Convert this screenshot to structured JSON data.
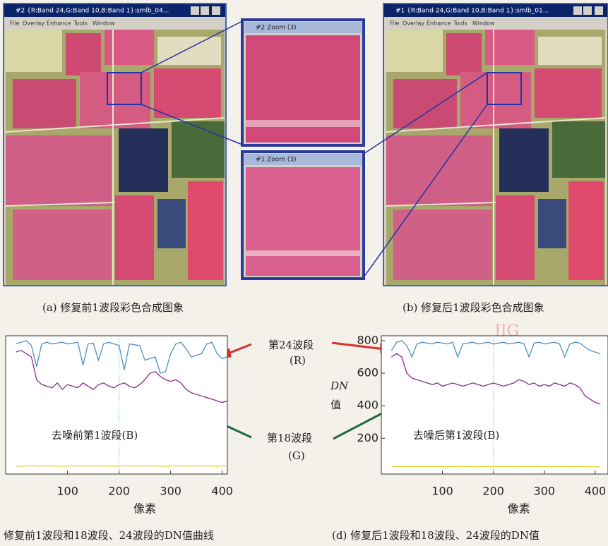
{
  "windows": {
    "left": {
      "title": "#2 {R:Band 24,G:Band 10,B:Band 1}:smlb_04...",
      "menu": [
        "File",
        "Overlay",
        "Enhance",
        "Tools",
        "Window"
      ]
    },
    "zoom_top": {
      "title": "#2 Zoom (3)"
    },
    "zoom_bottom": {
      "title": "#1 Zoom (3)"
    },
    "right": {
      "title": "#1 {R:Band 24,G:Band 10,B:Band 1}:smlb_01...",
      "menu": [
        "File",
        "Overlay",
        "Enhance",
        "Tools",
        "Window"
      ]
    }
  },
  "captions": {
    "a": "(a) 修复前1波段彩色合成图象",
    "b": "(b) 修复后1波段彩色合成图象",
    "c": "修复前1波段和18波段、24波段的DN值曲线",
    "d": "(d) 修复后1波段和18波段、24波段的DN值"
  },
  "annotations": {
    "band24": "第24波段",
    "band24_sub": "(R)",
    "band18": "第18波段",
    "band18_sub": "(G)",
    "dn": "DN",
    "dn_sub": "值",
    "watermark": "JIG"
  },
  "chart_data": [
    {
      "type": "line",
      "xlabel": "像素",
      "note": "去噪前第1波段(B)",
      "xlim": [
        -20,
        410
      ],
      "ylim": [
        -20,
        830
      ],
      "xticks": [
        100,
        200,
        300,
        400
      ],
      "yticks": [],
      "vline": 200,
      "x": [
        0,
        10,
        20,
        30,
        40,
        50,
        60,
        70,
        80,
        90,
        100,
        110,
        120,
        130,
        140,
        150,
        160,
        170,
        180,
        190,
        200,
        210,
        220,
        230,
        240,
        250,
        260,
        270,
        280,
        290,
        300,
        310,
        320,
        330,
        340,
        350,
        360,
        370,
        380,
        390,
        400,
        410
      ],
      "series": [
        {
          "color": "#4a8fc6",
          "values": [
            780,
            790,
            800,
            770,
            640,
            780,
            790,
            780,
            785,
            790,
            780,
            785,
            790,
            650,
            780,
            785,
            680,
            780,
            790,
            780,
            770,
            620,
            780,
            775,
            770,
            680,
            690,
            700,
            600,
            610,
            720,
            780,
            790,
            750,
            700,
            710,
            720,
            780,
            790,
            720,
            690,
            700
          ]
        },
        {
          "color": "#8a2a88",
          "values": [
            730,
            740,
            720,
            700,
            560,
            530,
            520,
            510,
            540,
            500,
            530,
            520,
            510,
            540,
            520,
            500,
            530,
            540,
            520,
            510,
            530,
            540,
            520,
            510,
            530,
            560,
            600,
            610,
            580,
            560,
            550,
            560,
            540,
            500,
            480,
            470,
            460,
            450,
            440,
            430,
            420,
            430
          ]
        },
        {
          "color": "#e6d420",
          "values": [
            30,
            28,
            30,
            32,
            29,
            30,
            31,
            29,
            30,
            28,
            30,
            31,
            30,
            29,
            30,
            31,
            30,
            29,
            30,
            28,
            30,
            31,
            30,
            29,
            30,
            31,
            30,
            29,
            30,
            28,
            30,
            31,
            30,
            29,
            30,
            31,
            30,
            29,
            30,
            28,
            30,
            30
          ]
        }
      ]
    },
    {
      "type": "line",
      "xlabel": "像素",
      "note": "去噪后第1波段(B)",
      "xlim": [
        -20,
        425
      ],
      "ylim": [
        -20,
        830
      ],
      "xticks": [
        100,
        200,
        300,
        400
      ],
      "yticks": [
        200,
        400,
        600,
        800
      ],
      "vline": 200,
      "x": [
        0,
        10,
        20,
        30,
        40,
        50,
        60,
        70,
        80,
        90,
        100,
        110,
        120,
        130,
        140,
        150,
        160,
        170,
        180,
        190,
        200,
        210,
        220,
        230,
        240,
        250,
        260,
        270,
        280,
        290,
        300,
        310,
        320,
        330,
        340,
        350,
        360,
        370,
        380,
        390,
        400,
        410
      ],
      "series": [
        {
          "color": "#4a8fc6",
          "values": [
            740,
            790,
            800,
            770,
            700,
            780,
            790,
            785,
            780,
            790,
            785,
            780,
            790,
            700,
            780,
            785,
            790,
            780,
            785,
            790,
            780,
            785,
            790,
            780,
            785,
            790,
            780,
            700,
            785,
            790,
            780,
            785,
            790,
            780,
            700,
            780,
            790,
            785,
            760,
            740,
            730,
            720
          ]
        },
        {
          "color": "#8a2a88",
          "values": [
            700,
            720,
            700,
            600,
            570,
            560,
            550,
            540,
            530,
            540,
            520,
            530,
            540,
            530,
            520,
            530,
            540,
            530,
            520,
            530,
            540,
            530,
            520,
            530,
            540,
            560,
            550,
            530,
            540,
            520,
            530,
            520,
            540,
            530,
            520,
            540,
            530,
            510,
            460,
            440,
            420,
            410
          ]
        },
        {
          "color": "#e6d420",
          "values": [
            25,
            27,
            25,
            26,
            25,
            27,
            25,
            26,
            25,
            27,
            25,
            26,
            25,
            27,
            25,
            26,
            25,
            27,
            25,
            26,
            25,
            27,
            25,
            26,
            25,
            27,
            25,
            26,
            25,
            27,
            25,
            26,
            25,
            27,
            25,
            26,
            25,
            27,
            25,
            26,
            25,
            25
          ]
        }
      ]
    }
  ]
}
